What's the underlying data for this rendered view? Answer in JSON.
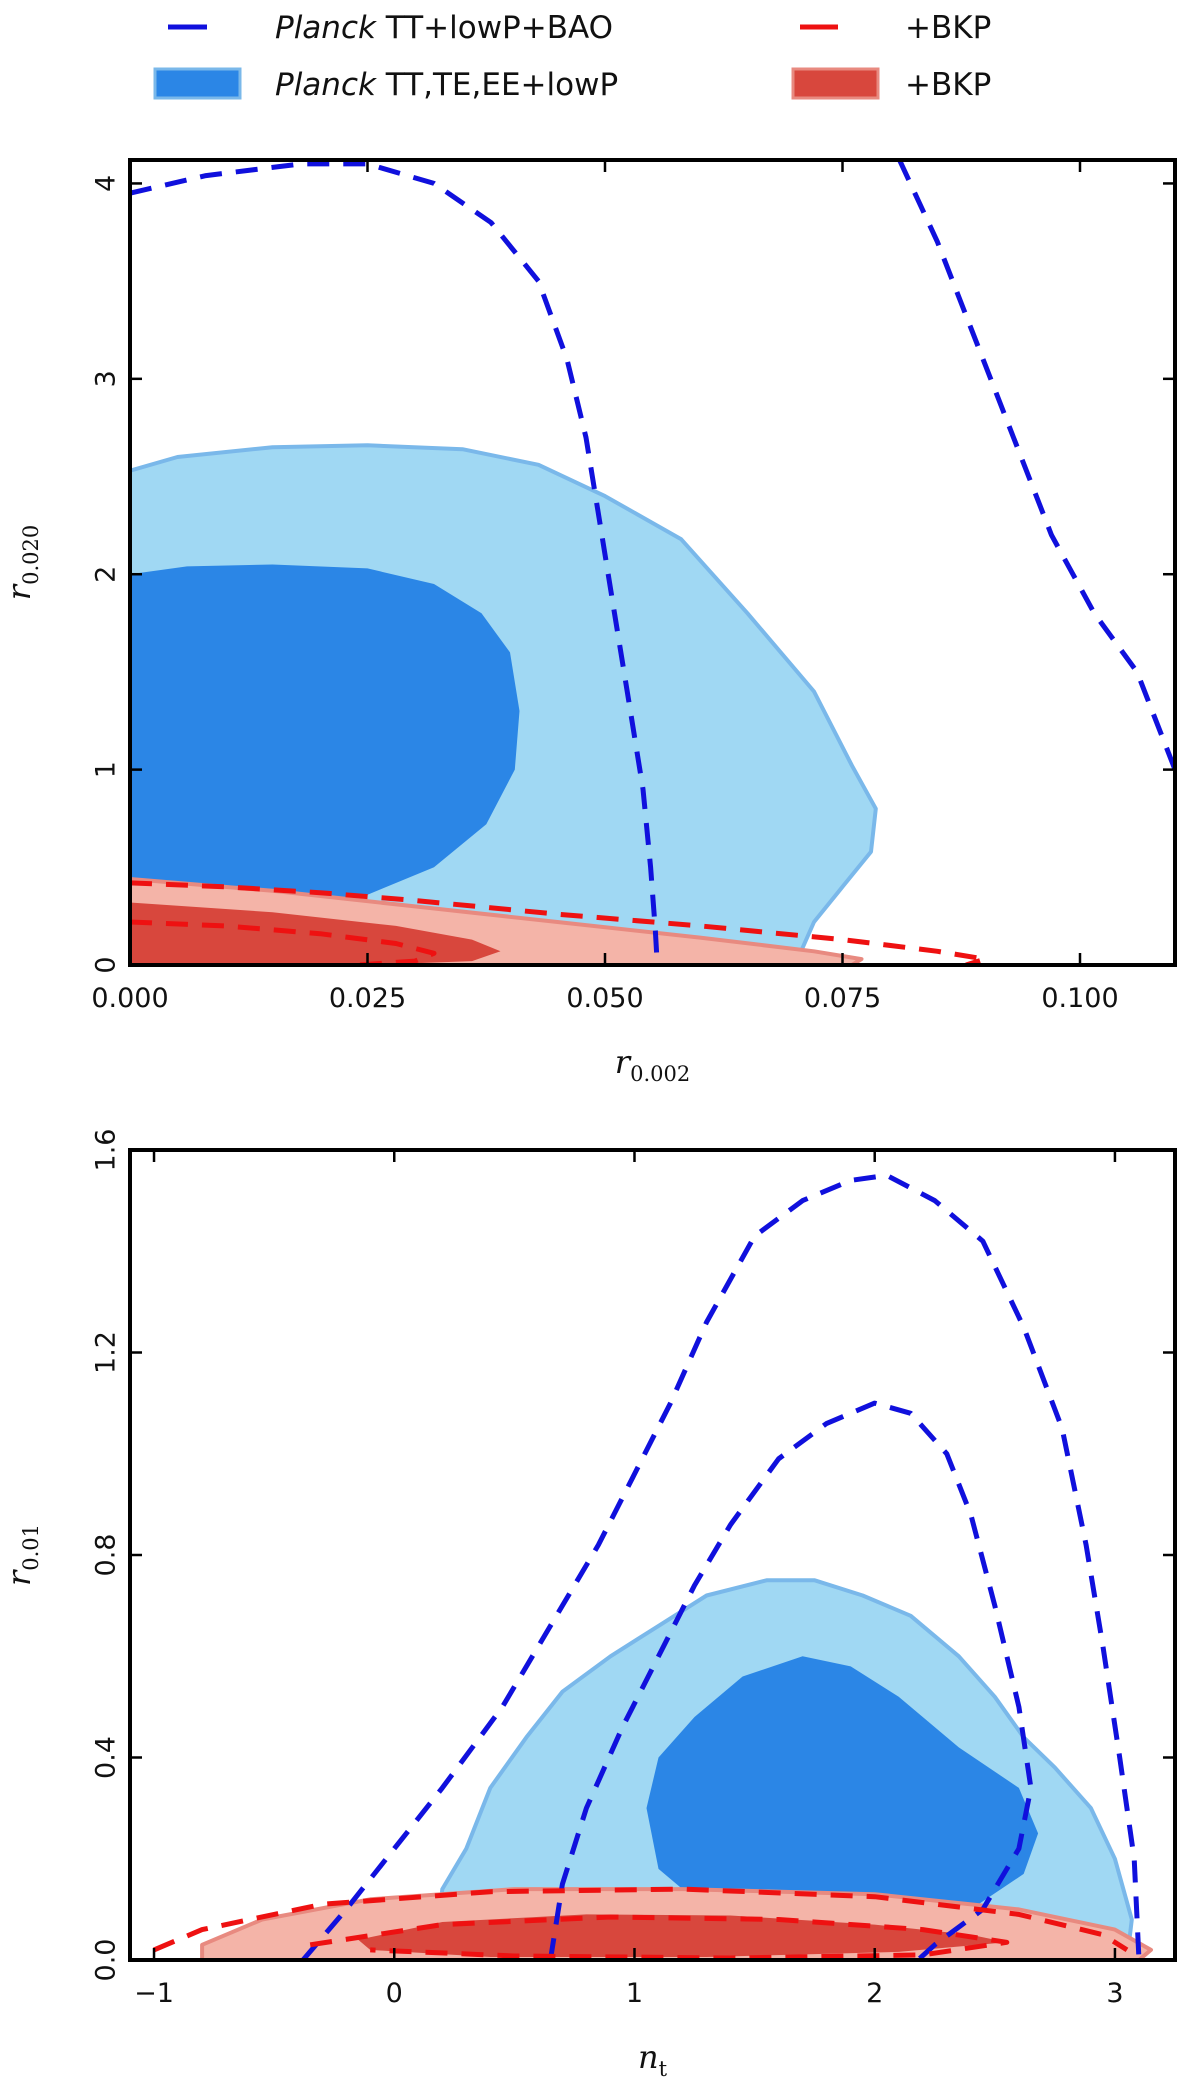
{
  "legend": {
    "placement": "top",
    "items": [
      {
        "label_italic": "Planck",
        "label_rest": " TT+lowP+BAO",
        "style": "dashed",
        "color": "#1010dd"
      },
      {
        "label_italic": "",
        "label_rest": "+BKP",
        "style": "dashed",
        "color": "#ee1111"
      },
      {
        "label_italic": "Planck",
        "label_rest": " TT,TE,EE+lowP",
        "style": "filled",
        "color": "#2b86e6"
      },
      {
        "label_italic": "",
        "label_rest": "+BKP",
        "style": "filled",
        "color": "#e84a3c"
      }
    ]
  },
  "colors": {
    "blue_dashed": "#1010dd",
    "red_dashed": "#ee1111",
    "blue_outer_fill": "#a0d8f3",
    "blue_outer_edge": "#7ab8ea",
    "blue_inner_fill": "#2b86e6",
    "red_outer_fill": "#f4b4a8",
    "red_outer_edge": "#e88a80",
    "red_inner_fill": "#d8473d"
  },
  "chart_data": [
    {
      "type": "contour",
      "xlabel": {
        "main": "r",
        "sub": "0.002"
      },
      "ylabel": {
        "main": "r",
        "sub": "0.020"
      },
      "xlim": [
        0,
        0.11
      ],
      "ylim": [
        0,
        4.12
      ],
      "xticks": [
        0,
        0.025,
        0.05,
        0.075,
        0.1
      ],
      "xtick_labels": [
        "0.000",
        "0.025",
        "0.050",
        "0.075",
        "0.100"
      ],
      "yticks": [
        0,
        1,
        2,
        3,
        4
      ],
      "ytick_labels": [
        "0",
        "1",
        "2",
        "3",
        "4"
      ],
      "grid": false,
      "series": [
        {
          "name": "Planck TT,TE,EE+lowP (95%)",
          "style": "blue_outer",
          "points": [
            [
              0,
              2.53
            ],
            [
              0.005,
              2.6
            ],
            [
              0.015,
              2.65
            ],
            [
              0.025,
              2.66
            ],
            [
              0.035,
              2.64
            ],
            [
              0.043,
              2.56
            ],
            [
              0.05,
              2.4
            ],
            [
              0.058,
              2.18
            ],
            [
              0.065,
              1.8
            ],
            [
              0.072,
              1.4
            ],
            [
              0.076,
              1.02
            ],
            [
              0.0785,
              0.8
            ],
            [
              0.078,
              0.58
            ],
            [
              0.075,
              0.4
            ],
            [
              0.072,
              0.22
            ],
            [
              0.07,
              0
            ],
            [
              0,
              0
            ]
          ]
        },
        {
          "name": "Planck TT,TE,EE+lowP (68%)",
          "style": "blue_inner",
          "points": [
            [
              0,
              2.0
            ],
            [
              0.006,
              2.04
            ],
            [
              0.015,
              2.05
            ],
            [
              0.025,
              2.03
            ],
            [
              0.032,
              1.95
            ],
            [
              0.037,
              1.8
            ],
            [
              0.04,
              1.6
            ],
            [
              0.041,
              1.3
            ],
            [
              0.0405,
              1.0
            ],
            [
              0.0375,
              0.72
            ],
            [
              0.032,
              0.5
            ],
            [
              0.025,
              0.36
            ],
            [
              0.015,
              0.22
            ],
            [
              0.005,
              0.12
            ],
            [
              0,
              0
            ]
          ]
        },
        {
          "name": "+BKP (95%)",
          "style": "red_outer",
          "points": [
            [
              0,
              0.44
            ],
            [
              0.015,
              0.38
            ],
            [
              0.03,
              0.3
            ],
            [
              0.045,
              0.22
            ],
            [
              0.06,
              0.14
            ],
            [
              0.072,
              0.07
            ],
            [
              0.077,
              0.03
            ],
            [
              0.076,
              0
            ],
            [
              0,
              0
            ]
          ]
        },
        {
          "name": "+BKP (68%)",
          "style": "red_inner",
          "points": [
            [
              0,
              0.32
            ],
            [
              0.015,
              0.27
            ],
            [
              0.028,
              0.2
            ],
            [
              0.036,
              0.13
            ],
            [
              0.039,
              0.07
            ],
            [
              0.036,
              0.02
            ],
            [
              0.025,
              0
            ],
            [
              0,
              0
            ]
          ]
        },
        {
          "name": "Planck TT+lowP+BAO (68%)",
          "style": "blue_dashed",
          "points": [
            [
              0,
              3.95
            ],
            [
              0.008,
              4.04
            ],
            [
              0.018,
              4.1
            ],
            [
              0.025,
              4.1
            ],
            [
              0.032,
              4.0
            ],
            [
              0.038,
              3.8
            ],
            [
              0.043,
              3.5
            ],
            [
              0.046,
              3.1
            ],
            [
              0.048,
              2.7
            ],
            [
              0.0495,
              2.25
            ],
            [
              0.051,
              1.8
            ],
            [
              0.0525,
              1.35
            ],
            [
              0.054,
              0.9
            ],
            [
              0.0548,
              0.5
            ],
            [
              0.0553,
              0.18
            ],
            [
              0.0555,
              0
            ]
          ]
        },
        {
          "name": "Planck TT+lowP+BAO (95%)",
          "style": "blue_dashed",
          "points": [
            [
              0.081,
              4.12
            ],
            [
              0.085,
              3.7
            ],
            [
              0.089,
              3.2
            ],
            [
              0.093,
              2.7
            ],
            [
              0.097,
              2.2
            ],
            [
              0.1015,
              1.8
            ],
            [
              0.106,
              1.5
            ],
            [
              0.11,
              1.0
            ]
          ]
        },
        {
          "name": "+BKP dashed (95%)",
          "style": "red_dashed",
          "points": [
            [
              0,
              0.42
            ],
            [
              0.01,
              0.4
            ],
            [
              0.02,
              0.37
            ],
            [
              0.03,
              0.33
            ],
            [
              0.045,
              0.26
            ],
            [
              0.06,
              0.2
            ],
            [
              0.075,
              0.13
            ],
            [
              0.085,
              0.07
            ],
            [
              0.09,
              0.03
            ],
            [
              0.088,
              0
            ]
          ]
        },
        {
          "name": "+BKP dashed (68%)",
          "style": "red_dashed",
          "points": [
            [
              0,
              0.22
            ],
            [
              0.01,
              0.2
            ],
            [
              0.02,
              0.16
            ],
            [
              0.028,
              0.11
            ],
            [
              0.032,
              0.06
            ],
            [
              0.03,
              0.02
            ],
            [
              0.024,
              0
            ]
          ]
        }
      ]
    },
    {
      "type": "contour",
      "xlabel": {
        "main": "n",
        "sub": "t"
      },
      "ylabel": {
        "main": "r",
        "sub": "0.01"
      },
      "xlim": [
        -1.1,
        3.25
      ],
      "ylim": [
        0,
        1.6
      ],
      "xticks": [
        -1,
        0,
        1,
        2,
        3
      ],
      "xtick_labels": [
        "−1",
        "0",
        "1",
        "2",
        "3"
      ],
      "yticks": [
        0,
        0.4,
        0.8,
        1.2,
        1.6
      ],
      "ytick_labels": [
        "0.0",
        "0.4",
        "0.8",
        "1.2",
        "1.6"
      ],
      "grid": false,
      "series": [
        {
          "name": "Planck TT,TE,EE+lowP (95%)",
          "style": "blue_outer",
          "points": [
            [
              0.17,
              0
            ],
            [
              0.2,
              0.14
            ],
            [
              0.3,
              0.22
            ],
            [
              0.4,
              0.34
            ],
            [
              0.55,
              0.44
            ],
            [
              0.7,
              0.53
            ],
            [
              0.9,
              0.6
            ],
            [
              1.1,
              0.66
            ],
            [
              1.3,
              0.72
            ],
            [
              1.55,
              0.75
            ],
            [
              1.75,
              0.75
            ],
            [
              1.95,
              0.72
            ],
            [
              2.15,
              0.68
            ],
            [
              2.35,
              0.6
            ],
            [
              2.5,
              0.52
            ],
            [
              2.62,
              0.44
            ],
            [
              2.75,
              0.38
            ],
            [
              2.9,
              0.3
            ],
            [
              3.0,
              0.2
            ],
            [
              3.07,
              0.08
            ],
            [
              3.05,
              0
            ]
          ]
        },
        {
          "name": "Planck TT,TE,EE+lowP (68%)",
          "style": "blue_inner",
          "points": [
            [
              1.05,
              0.3
            ],
            [
              1.1,
              0.4
            ],
            [
              1.25,
              0.48
            ],
            [
              1.45,
              0.56
            ],
            [
              1.7,
              0.6
            ],
            [
              1.9,
              0.58
            ],
            [
              2.1,
              0.52
            ],
            [
              2.35,
              0.42
            ],
            [
              2.6,
              0.34
            ],
            [
              2.68,
              0.25
            ],
            [
              2.62,
              0.17
            ],
            [
              2.4,
              0.1
            ],
            [
              2.0,
              0.08
            ],
            [
              1.5,
              0.09
            ],
            [
              1.25,
              0.12
            ],
            [
              1.1,
              0.18
            ]
          ]
        },
        {
          "name": "+BKP (95%)",
          "style": "red_outer",
          "points": [
            [
              -0.8,
              0.03
            ],
            [
              -0.55,
              0.08
            ],
            [
              -0.1,
              0.12
            ],
            [
              0.5,
              0.14
            ],
            [
              1.2,
              0.14
            ],
            [
              2.0,
              0.13
            ],
            [
              2.6,
              0.1
            ],
            [
              3.0,
              0.06
            ],
            [
              3.15,
              0.02
            ],
            [
              3.1,
              0
            ],
            [
              -0.8,
              0
            ]
          ]
        },
        {
          "name": "+BKP (68%)",
          "style": "red_inner",
          "points": [
            [
              -0.15,
              0.04
            ],
            [
              0.2,
              0.075
            ],
            [
              0.8,
              0.09
            ],
            [
              1.4,
              0.088
            ],
            [
              2.0,
              0.07
            ],
            [
              2.4,
              0.05
            ],
            [
              2.55,
              0.035
            ],
            [
              2.1,
              0.016
            ],
            [
              1.3,
              0.006
            ],
            [
              0.4,
              0.006
            ],
            [
              -0.1,
              0.02
            ]
          ]
        },
        {
          "name": "Planck TT+lowP+BAO (95%)",
          "style": "blue_dashed",
          "points": [
            [
              -0.38,
              0
            ],
            [
              -0.2,
              0.1
            ],
            [
              0,
              0.22
            ],
            [
              0.2,
              0.34
            ],
            [
              0.45,
              0.5
            ],
            [
              0.65,
              0.66
            ],
            [
              0.85,
              0.82
            ],
            [
              1.0,
              0.96
            ],
            [
              1.15,
              1.1
            ],
            [
              1.3,
              1.26
            ],
            [
              1.5,
              1.43
            ],
            [
              1.7,
              1.5
            ],
            [
              1.9,
              1.54
            ],
            [
              2.05,
              1.55
            ],
            [
              2.25,
              1.5
            ],
            [
              2.45,
              1.42
            ],
            [
              2.62,
              1.25
            ],
            [
              2.78,
              1.05
            ],
            [
              2.88,
              0.82
            ],
            [
              2.95,
              0.62
            ],
            [
              3.02,
              0.4
            ],
            [
              3.08,
              0.2
            ],
            [
              3.1,
              0
            ]
          ]
        },
        {
          "name": "Planck TT+lowP+BAO (68%)",
          "style": "blue_dashed",
          "points": [
            [
              0.65,
              0
            ],
            [
              0.7,
              0.15
            ],
            [
              0.8,
              0.3
            ],
            [
              0.95,
              0.46
            ],
            [
              1.1,
              0.6
            ],
            [
              1.25,
              0.74
            ],
            [
              1.4,
              0.86
            ],
            [
              1.6,
              0.99
            ],
            [
              1.8,
              1.06
            ],
            [
              2.0,
              1.1
            ],
            [
              2.15,
              1.08
            ],
            [
              2.3,
              1.0
            ],
            [
              2.4,
              0.88
            ],
            [
              2.5,
              0.7
            ],
            [
              2.6,
              0.5
            ],
            [
              2.65,
              0.34
            ],
            [
              2.6,
              0.22
            ],
            [
              2.45,
              0.1
            ],
            [
              2.25,
              0.03
            ],
            [
              2.18,
              0
            ]
          ]
        },
        {
          "name": "+BKP dashed (95%)",
          "style": "red_dashed",
          "points": [
            [
              -1.0,
              0.02
            ],
            [
              -0.8,
              0.06
            ],
            [
              -0.3,
              0.11
            ],
            [
              0.4,
              0.135
            ],
            [
              1.2,
              0.14
            ],
            [
              2.0,
              0.125
            ],
            [
              2.6,
              0.09
            ],
            [
              2.95,
              0.05
            ],
            [
              3.05,
              0.02
            ]
          ]
        },
        {
          "name": "+BKP dashed (68%)",
          "style": "red_dashed",
          "points": [
            [
              -0.35,
              0.03
            ],
            [
              0.2,
              0.07
            ],
            [
              0.9,
              0.085
            ],
            [
              1.6,
              0.08
            ],
            [
              2.2,
              0.06
            ],
            [
              2.55,
              0.035
            ],
            [
              2.2,
              0.01
            ],
            [
              1.4,
              0.004
            ],
            [
              0.5,
              0.008
            ],
            [
              -0.1,
              0.02
            ]
          ]
        }
      ]
    }
  ]
}
